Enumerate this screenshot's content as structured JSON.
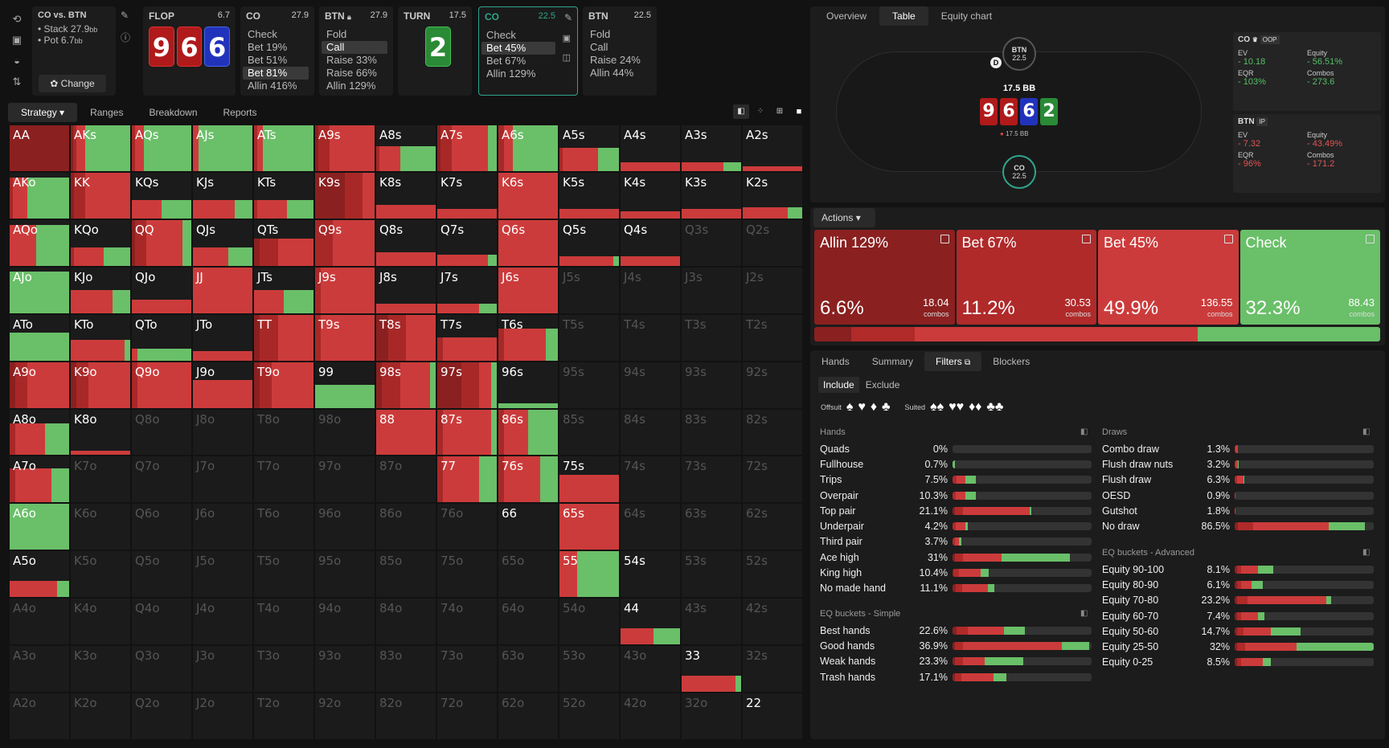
{
  "colors": {
    "bet_red": "#cc3b3b",
    "check_green": "#6abf69",
    "allin_dark": "#8b2020",
    "teal": "#2fa58a"
  },
  "toolbar": {
    "icons": [
      "refresh-icon",
      "save-icon",
      "gamepad-icon",
      "sort-icon"
    ]
  },
  "matchup": {
    "title": "CO vs. BTN",
    "stack_label": "Stack 27.9",
    "stack_unit": "bb",
    "pot_label": "Pot 6.7",
    "pot_unit": "bb",
    "change_label": "Change"
  },
  "flop": {
    "label": "FLOP",
    "value": "6.7",
    "cards": [
      "9",
      "6",
      "6"
    ]
  },
  "co_node": {
    "label": "CO",
    "value": "27.9",
    "actions": [
      "Check",
      "Bet 19%",
      "Bet 51%",
      "Bet 81%",
      "Allin 416%"
    ],
    "selected": 3
  },
  "btn_node": {
    "label": "BTN",
    "value": "27.9",
    "actions": [
      "Fold",
      "Call",
      "Raise 33%",
      "Raise 66%",
      "Allin 129%"
    ],
    "selected": 1
  },
  "turn": {
    "label": "TURN",
    "value": "17.5",
    "card": "2"
  },
  "co_node2": {
    "label": "CO",
    "value": "22.5",
    "actions": [
      "Check",
      "Bet 45%",
      "Bet 67%",
      "Allin 129%"
    ],
    "selected": 1
  },
  "btn_node2": {
    "label": "BTN",
    "value": "22.5",
    "actions": [
      "Fold",
      "Call",
      "Raise 24%",
      "Allin 44%"
    ]
  },
  "left_tabs": [
    "Strategy",
    "Ranges",
    "Breakdown",
    "Reports"
  ],
  "right_tabs": [
    "Overview",
    "Table",
    "Equity chart"
  ],
  "table": {
    "btn_label": "BTN",
    "btn_stack": "22.5",
    "co_label": "CO",
    "co_stack": "22.5",
    "pot": "17.5 BB",
    "pot_small": "17.5 BB",
    "dealer": "D",
    "board": [
      "9",
      "6",
      "6",
      "2"
    ]
  },
  "co_stats": {
    "name": "CO",
    "pos": "OOP",
    "ev_label": "EV",
    "ev": "- 10.18",
    "eq_label": "Equity",
    "eq": "- 56.51%",
    "eqr_label": "EQR",
    "eqr": "- 103%",
    "combos_label": "Combos",
    "combos": "- 273.6"
  },
  "btn_stats": {
    "name": "BTN",
    "pos": "IP",
    "ev_label": "EV",
    "ev": "- 7.32",
    "eq_label": "Equity",
    "eq": "- 43.49%",
    "eqr_label": "EQR",
    "eqr": "- 96%",
    "combos_label": "Combos",
    "combos": "- 171.2"
  },
  "actions_menu": "Actions",
  "action_boxes": [
    {
      "name": "Allin 129%",
      "pct": "6.6%",
      "combos": "18.04",
      "color": "#8b2020"
    },
    {
      "name": "Bet 67%",
      "pct": "11.2%",
      "combos": "30.53",
      "color": "#b02a2a"
    },
    {
      "name": "Bet 45%",
      "pct": "49.9%",
      "combos": "136.55",
      "color": "#cc3b3b"
    },
    {
      "name": "Check",
      "pct": "32.3%",
      "combos": "88.43",
      "color": "#6abf69"
    }
  ],
  "combos_word": "combos",
  "freq_bar": [
    6.6,
    11.2,
    49.9,
    32.3
  ],
  "bottom_tabs": [
    "Hands",
    "Summary",
    "Filters",
    "Blockers"
  ],
  "filters": {
    "include": "Include",
    "exclude": "Exclude",
    "offsuit": "Offsuit",
    "suited": "Suited"
  },
  "hands_title": "Hands",
  "hands": [
    {
      "n": "Quads",
      "p": "0%",
      "v": [
        0,
        0,
        0,
        0
      ]
    },
    {
      "n": "Fullhouse",
      "p": "0.7%",
      "v": [
        0,
        0,
        0,
        2
      ]
    },
    {
      "n": "Trips",
      "p": "7.5%",
      "v": [
        0,
        4,
        8,
        10
      ]
    },
    {
      "n": "Overpair",
      "p": "10.3%",
      "v": [
        0,
        3,
        9,
        10
      ]
    },
    {
      "n": "Top pair",
      "p": "21.1%",
      "v": [
        2,
        8,
        62,
        2
      ]
    },
    {
      "n": "Underpair",
      "p": "4.2%",
      "v": [
        0,
        3,
        9,
        2
      ]
    },
    {
      "n": "Third pair",
      "p": "3.7%",
      "v": [
        0,
        2,
        4,
        2
      ]
    },
    {
      "n": "Ace high",
      "p": "31%",
      "v": [
        2,
        8,
        36,
        64
      ]
    },
    {
      "n": "King high",
      "p": "10.4%",
      "v": [
        1,
        5,
        20,
        8
      ]
    },
    {
      "n": "No made hand",
      "p": "11.1%",
      "v": [
        3,
        6,
        24,
        6
      ]
    }
  ],
  "eq_simple_title": "EQ buckets - Simple",
  "eq_simple": [
    {
      "n": "Best hands",
      "p": "22.6%",
      "v": [
        4,
        10,
        34,
        20
      ]
    },
    {
      "n": "Good hands",
      "p": "36.9%",
      "v": [
        2,
        8,
        92,
        26
      ]
    },
    {
      "n": "Weak hands",
      "p": "23.3%",
      "v": [
        2,
        8,
        20,
        36
      ]
    },
    {
      "n": "Trash hands",
      "p": "17.1%",
      "v": [
        2,
        6,
        30,
        12
      ]
    }
  ],
  "draws_title": "Draws",
  "draws": [
    {
      "n": "Combo draw",
      "p": "1.3%",
      "v": [
        0,
        1,
        2,
        0
      ]
    },
    {
      "n": "Flush draw nuts",
      "p": "3.2%",
      "v": [
        0,
        1,
        2,
        1
      ]
    },
    {
      "n": "Flush draw",
      "p": "6.3%",
      "v": [
        0,
        2,
        6,
        1
      ]
    },
    {
      "n": "OESD",
      "p": "0.9%",
      "v": [
        0,
        0,
        1,
        0
      ]
    },
    {
      "n": "Gutshot",
      "p": "1.8%",
      "v": [
        0,
        0,
        1,
        0
      ]
    },
    {
      "n": "No draw",
      "p": "86.5%",
      "v": [
        3,
        14,
        71,
        34
      ]
    }
  ],
  "eq_adv_title": "EQ buckets - Advanced",
  "eq_adv": [
    {
      "n": "Equity 90-100",
      "p": "8.1%",
      "v": [
        2,
        4,
        16,
        14
      ]
    },
    {
      "n": "Equity 80-90",
      "p": "6.1%",
      "v": [
        2,
        4,
        10,
        10
      ]
    },
    {
      "n": "Equity 70-80",
      "p": "23.2%",
      "v": [
        2,
        10,
        74,
        4
      ]
    },
    {
      "n": "Equity 60-70",
      "p": "7.4%",
      "v": [
        2,
        4,
        16,
        6
      ]
    },
    {
      "n": "Equity 50-60",
      "p": "14.7%",
      "v": [
        2,
        6,
        26,
        28
      ]
    },
    {
      "n": "Equity 25-50",
      "p": "32%",
      "v": [
        2,
        8,
        48,
        72
      ]
    },
    {
      "n": "Equity 0-25",
      "p": "8.5%",
      "v": [
        2,
        4,
        20,
        8
      ]
    }
  ],
  "grid": [
    [
      "AA",
      "AKs",
      "AQs",
      "AJs",
      "ATs",
      "A9s",
      "A8s",
      "A7s",
      "A6s",
      "A5s",
      "A4s",
      "A3s",
      "A2s"
    ],
    [
      "AKo",
      "KK",
      "KQs",
      "KJs",
      "KTs",
      "K9s",
      "K8s",
      "K7s",
      "K6s",
      "K5s",
      "K4s",
      "K3s",
      "K2s"
    ],
    [
      "AQo",
      "KQo",
      "QQ",
      "QJs",
      "QTs",
      "Q9s",
      "Q8s",
      "Q7s",
      "Q6s",
      "Q5s",
      "Q4s",
      "Q3s",
      "Q2s"
    ],
    [
      "AJo",
      "KJo",
      "QJo",
      "JJ",
      "JTs",
      "J9s",
      "J8s",
      "J7s",
      "J6s",
      "J5s",
      "J4s",
      "J3s",
      "J2s"
    ],
    [
      "ATo",
      "KTo",
      "QTo",
      "JTo",
      "TT",
      "T9s",
      "T8s",
      "T7s",
      "T6s",
      "T5s",
      "T4s",
      "T3s",
      "T2s"
    ],
    [
      "A9o",
      "K9o",
      "Q9o",
      "J9o",
      "T9o",
      "99",
      "98s",
      "97s",
      "96s",
      "95s",
      "94s",
      "93s",
      "92s"
    ],
    [
      "A8o",
      "K8o",
      "Q8o",
      "J8o",
      "T8o",
      "98o",
      "88",
      "87s",
      "86s",
      "85s",
      "84s",
      "83s",
      "82s"
    ],
    [
      "A7o",
      "K7o",
      "Q7o",
      "J7o",
      "T7o",
      "97o",
      "87o",
      "77",
      "76s",
      "75s",
      "74s",
      "73s",
      "72s"
    ],
    [
      "A6o",
      "K6o",
      "Q6o",
      "J6o",
      "T6o",
      "96o",
      "86o",
      "76o",
      "66",
      "65s",
      "64s",
      "63s",
      "62s"
    ],
    [
      "A5o",
      "K5o",
      "Q5o",
      "J5o",
      "T5o",
      "95o",
      "85o",
      "75o",
      "65o",
      "55",
      "54s",
      "53s",
      "52s"
    ],
    [
      "A4o",
      "K4o",
      "Q4o",
      "J4o",
      "T4o",
      "94o",
      "84o",
      "74o",
      "64o",
      "54o",
      "44",
      "43s",
      "42s"
    ],
    [
      "A3o",
      "K3o",
      "Q3o",
      "J3o",
      "T3o",
      "93o",
      "83o",
      "73o",
      "63o",
      "53o",
      "43o",
      "33",
      "32s"
    ],
    [
      "A2o",
      "K2o",
      "Q2o",
      "J2o",
      "T2o",
      "92o",
      "82o",
      "72o",
      "62o",
      "52o",
      "42o",
      "32o",
      "22"
    ]
  ],
  "grid_fills": {
    "AA": [
      1,
      0.8,
      0,
      0,
      0,
      1
    ],
    "AKs": [
      1,
      0.04,
      0.05,
      0.15,
      0.76
    ],
    "AQs": [
      1,
      0,
      0.05,
      0.15,
      0.8
    ],
    "AJs": [
      1,
      0,
      0,
      0.1,
      0.9
    ],
    "ATs": [
      1,
      0,
      0.05,
      0.1,
      0.85
    ],
    "A9s": [
      1,
      0.05,
      0.2,
      0.75,
      0
    ],
    "A8s": [
      0.55,
      0,
      0.05,
      0.35,
      0.6
    ],
    "A7s": [
      1,
      0.05,
      0.2,
      0.6,
      0.15
    ],
    "A6s": [
      1,
      0,
      0.1,
      0.15,
      0.75
    ],
    "A5s": [
      0.5,
      0,
      0.05,
      0.6,
      0.35
    ],
    "A4s": [
      0.2,
      0,
      0,
      1,
      0
    ],
    "A3s": [
      0.2,
      0,
      0,
      0.7,
      0.3
    ],
    "A2s": [
      0.1,
      0,
      0,
      1,
      0
    ],
    "AKo": [
      0.9,
      0,
      0.05,
      0.25,
      0.7
    ],
    "KK": [
      1,
      0.05,
      0.2,
      0.75,
      0
    ],
    "KQs": [
      0.4,
      0,
      0,
      0.5,
      0.5
    ],
    "KJs": [
      0.4,
      0,
      0,
      0.7,
      0.3
    ],
    "KTs": [
      0.4,
      0,
      0.05,
      0.5,
      0.45
    ],
    "K9s": [
      1,
      0.5,
      0.3,
      0.2,
      0
    ],
    "K8s": [
      0.3,
      0,
      0,
      1,
      0
    ],
    "K7s": [
      0.2,
      0,
      0,
      1,
      0
    ],
    "K6s": [
      1,
      0,
      0,
      1,
      0
    ],
    "K5s": [
      0.2,
      0,
      0,
      1,
      0
    ],
    "K4s": [
      0.15,
      0,
      0,
      1,
      0
    ],
    "K3s": [
      0.2,
      0,
      0,
      1,
      0
    ],
    "K2s": [
      0.25,
      0,
      0,
      0.75,
      0.25
    ],
    "AQo": [
      0.9,
      0,
      0,
      0.45,
      0.55
    ],
    "KQo": [
      0.4,
      0,
      0.05,
      0.5,
      0.45
    ],
    "QQ": [
      1,
      0.05,
      0.2,
      0.6,
      0.15
    ],
    "QJs": [
      0.4,
      0,
      0,
      0.6,
      0.4
    ],
    "QTs": [
      0.6,
      0.1,
      0.3,
      0.6,
      0
    ],
    "Q9s": [
      1,
      0,
      0.3,
      0.7,
      0
    ],
    "Q8s": [
      0.3,
      0,
      0,
      1,
      0
    ],
    "Q7s": [
      0.25,
      0,
      0,
      0.85,
      0.15
    ],
    "Q6s": [
      1,
      0,
      0,
      1,
      0
    ],
    "Q5s": [
      0.2,
      0,
      0,
      0.9,
      0.1
    ],
    "Q4s": [
      0.2,
      0,
      0,
      1,
      0
    ],
    "AJo": [
      0.9,
      0,
      0,
      0,
      1
    ],
    "KJo": [
      0.5,
      0,
      0,
      0.7,
      0.3
    ],
    "QJo": [
      0.3,
      0,
      0,
      1,
      0
    ],
    "JJ": [
      1,
      0,
      0,
      1,
      0
    ],
    "JTs": [
      0.5,
      0,
      0,
      0.5,
      0.5
    ],
    "J9s": [
      1,
      0,
      0.1,
      0.9,
      0
    ],
    "J8s": [
      0.2,
      0,
      0,
      1,
      0
    ],
    "J7s": [
      0.2,
      0,
      0,
      0.7,
      0.3
    ],
    "J6s": [
      1,
      0,
      0,
      1,
      0
    ],
    "ATo": [
      0.6,
      0,
      0,
      0,
      1
    ],
    "KTo": [
      0.45,
      0,
      0,
      0.9,
      0.1
    ],
    "QTo": [
      0.25,
      0,
      0,
      0.1,
      0.9
    ],
    "JTo": [
      0.2,
      0,
      0,
      1,
      0
    ],
    "TT": [
      1,
      0.1,
      0.3,
      0.6,
      0
    ],
    "T9s": [
      1,
      0,
      0.1,
      0.9,
      0
    ],
    "T8s": [
      1,
      0.2,
      0.3,
      0.5,
      0
    ],
    "T7s": [
      0.5,
      0,
      0.1,
      0.9,
      0
    ],
    "T6s": [
      0.7,
      0,
      0.1,
      0.7,
      0.2
    ],
    "A9o": [
      1,
      0.1,
      0.2,
      0.7,
      0
    ],
    "K9o": [
      1,
      0.1,
      0.2,
      0.7,
      0
    ],
    "Q9o": [
      1,
      0,
      0.1,
      0.9,
      0
    ],
    "J9o": [
      0.6,
      0,
      0,
      1,
      0
    ],
    "T9o": [
      1,
      0.1,
      0.2,
      0.7,
      0
    ],
    "99": [
      0.5,
      0,
      0,
      0,
      1
    ],
    "98s": [
      1,
      0.1,
      0.3,
      0.5,
      0.1
    ],
    "97s": [
      1,
      0.4,
      0.3,
      0.2,
      0.1
    ],
    "96s": [
      0.1,
      0,
      0,
      0,
      1
    ],
    "A8o": [
      0.7,
      0,
      0.1,
      0.5,
      0.4
    ],
    "K8o": [
      0.1,
      0,
      0,
      1,
      0
    ],
    "88": [
      1,
      0,
      0,
      1,
      0
    ],
    "87s": [
      1,
      0,
      0.1,
      0.8,
      0.1
    ],
    "86s": [
      1,
      0,
      0.1,
      0.4,
      0.5
    ],
    "A7o": [
      0.75,
      0,
      0.1,
      0.6,
      0.3
    ],
    "77": [
      1,
      0,
      0.1,
      0.6,
      0.3
    ],
    "76s": [
      1,
      0,
      0.1,
      0.6,
      0.3
    ],
    "75s": [
      0.6,
      0,
      0,
      1,
      0
    ],
    "A6o": [
      1,
      0,
      0,
      0,
      1
    ],
    "66": [
      0,
      0,
      0,
      0,
      0
    ],
    "65s": [
      1,
      0,
      0,
      1,
      0
    ],
    "A5o": [
      0.35,
      0,
      0,
      0.8,
      0.2
    ],
    "55": [
      1,
      0,
      0,
      0.3,
      0.7
    ],
    "44": [
      0.35,
      0,
      0,
      0.55,
      0.45
    ],
    "33": [
      0.35,
      0,
      0,
      0.9,
      0.1
    ]
  },
  "dim_cells": [
    "Q3s",
    "Q2s",
    "J5s",
    "J4s",
    "J3s",
    "J2s",
    "T5s",
    "T4s",
    "T3s",
    "T2s",
    "95s",
    "94s",
    "93s",
    "92s",
    "Q8o",
    "J8o",
    "T8o",
    "98o",
    "85s",
    "84s",
    "83s",
    "82s",
    "K7o",
    "Q7o",
    "J7o",
    "T7o",
    "97o",
    "87o",
    "74s",
    "73s",
    "72s",
    "K6o",
    "Q6o",
    "J6o",
    "T6o",
    "96o",
    "86o",
    "76o",
    "64s",
    "63s",
    "62s",
    "K5o",
    "Q5o",
    "J5o",
    "T5o",
    "95o",
    "85o",
    "75o",
    "65o",
    "53s",
    "52s",
    "A4o",
    "K4o",
    "Q4o",
    "J4o",
    "T4o",
    "94o",
    "84o",
    "74o",
    "64o",
    "54o",
    "43s",
    "42s",
    "A3o",
    "K3o",
    "Q3o",
    "J3o",
    "T3o",
    "93o",
    "83o",
    "73o",
    "63o",
    "53o",
    "43o",
    "32s",
    "A2o",
    "K2o",
    "Q2o",
    "J2o",
    "T2o",
    "92o",
    "82o",
    "72o",
    "62o",
    "52o",
    "42o",
    "32o"
  ]
}
